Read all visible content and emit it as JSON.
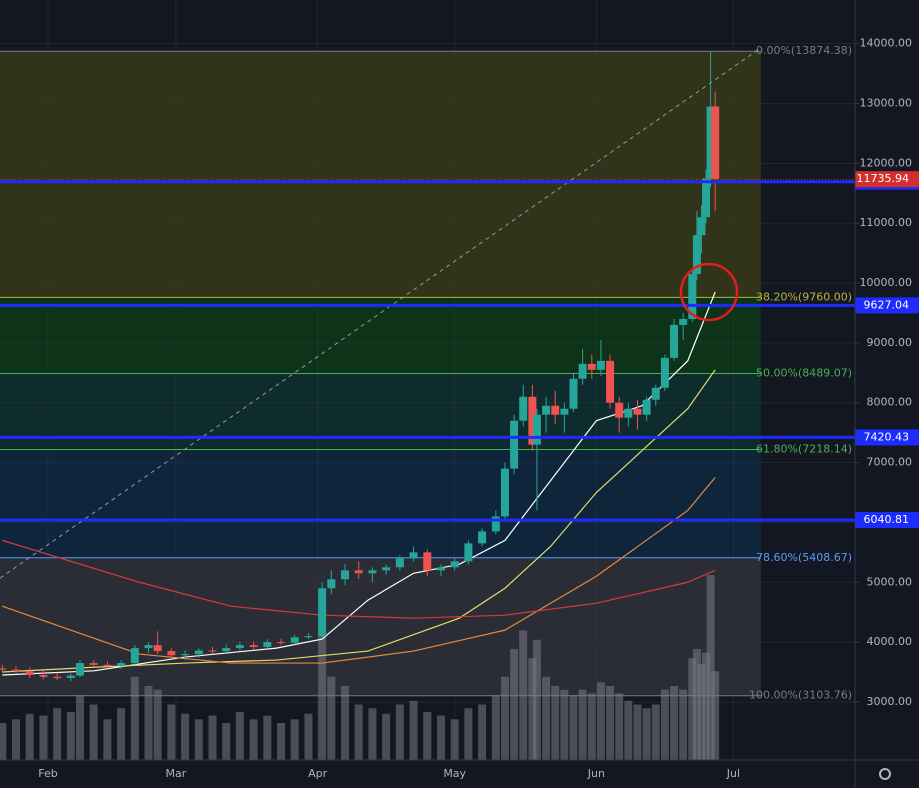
{
  "chart_data": {
    "type": "candlestick",
    "x": [
      -10,
      -7,
      -4,
      -1,
      2,
      5,
      7,
      10,
      13,
      16,
      19,
      22,
      24,
      27,
      30,
      33,
      36,
      39,
      42,
      45,
      48,
      51,
      54,
      57,
      60,
      62,
      65,
      68,
      71,
      74,
      77,
      80,
      83,
      86,
      89,
      92,
      95,
      98,
      100,
      102,
      104,
      106,
      107,
      109,
      111,
      113,
      115,
      117,
      119,
      121,
      123,
      125,
      127,
      129,
      131,
      133,
      135,
      137,
      139,
      141,
      142,
      143,
      144,
      145,
      146
    ],
    "open": [
      3560,
      3540,
      3510,
      3450,
      3420,
      3400,
      3440,
      3650,
      3620,
      3600,
      3650,
      3900,
      3950,
      3850,
      3780,
      3800,
      3860,
      3850,
      3900,
      3950,
      3920,
      4000,
      3990,
      4080,
      4100,
      4900,
      5050,
      5200,
      5150,
      5200,
      5250,
      5400,
      5500,
      5200,
      5250,
      5350,
      5650,
      5850,
      6100,
      6900,
      7700,
      8100,
      7300,
      7800,
      7950,
      7800,
      7900,
      8400,
      8650,
      8550,
      8700,
      8000,
      7750,
      7900,
      7800,
      8050,
      8250,
      8750,
      9300,
      9400,
      10150,
      10800,
      11100,
      11750,
      12950
    ],
    "high": [
      3620,
      3600,
      3580,
      3520,
      3490,
      3470,
      3700,
      3700,
      3680,
      3700,
      3950,
      4000,
      4180,
      3900,
      3860,
      3900,
      3920,
      3960,
      4000,
      4010,
      4050,
      4060,
      4120,
      4150,
      5000,
      5200,
      5300,
      5350,
      5250,
      5300,
      5450,
      5600,
      5550,
      5300,
      5400,
      5700,
      5900,
      6200,
      7000,
      7800,
      8300,
      8300,
      7900,
      8100,
      8200,
      8000,
      8500,
      8900,
      8800,
      9050,
      8800,
      8100,
      8000,
      8050,
      8100,
      8300,
      8800,
      9400,
      9500,
      10200,
      11200,
      11300,
      11900,
      13880,
      13200
    ],
    "low": [
      3500,
      3480,
      3400,
      3380,
      3360,
      3350,
      3420,
      3580,
      3560,
      3550,
      3620,
      3820,
      3800,
      3720,
      3700,
      3740,
      3800,
      3820,
      3860,
      3880,
      3890,
      3950,
      3960,
      4050,
      4080,
      4800,
      4950,
      5050,
      5000,
      5120,
      5200,
      5350,
      5100,
      5100,
      5200,
      5300,
      5600,
      5800,
      6050,
      6800,
      7600,
      7200,
      6200,
      7500,
      7650,
      7500,
      7850,
      8300,
      8400,
      8450,
      7900,
      7500,
      7600,
      7550,
      7700,
      7950,
      8200,
      8700,
      9050,
      9350,
      10050,
      10500,
      11000,
      11600,
      11200
    ],
    "close": [
      3540,
      3510,
      3450,
      3420,
      3400,
      3440,
      3650,
      3620,
      3600,
      3650,
      3900,
      3950,
      3850,
      3780,
      3800,
      3860,
      3850,
      3900,
      3950,
      3920,
      4000,
      3990,
      4080,
      4100,
      4900,
      5050,
      5200,
      5150,
      5200,
      5250,
      5400,
      5500,
      5200,
      5250,
      5350,
      5650,
      5850,
      6100,
      6900,
      7700,
      8100,
      7300,
      7800,
      7950,
      7800,
      7900,
      8400,
      8650,
      8550,
      8700,
      8000,
      7750,
      7900,
      7800,
      8050,
      8250,
      8750,
      9300,
      9400,
      10150,
      10800,
      11100,
      11750,
      12950,
      11735.94
    ],
    "volume": [
      20,
      22,
      25,
      24,
      28,
      26,
      35,
      30,
      22,
      28,
      45,
      40,
      38,
      30,
      25,
      22,
      24,
      20,
      26,
      22,
      24,
      20,
      22,
      25,
      70,
      45,
      40,
      30,
      28,
      25,
      30,
      32,
      26,
      24,
      22,
      28,
      30,
      35,
      45,
      60,
      70,
      55,
      65,
      45,
      40,
      38,
      35,
      38,
      36,
      42,
      40,
      36,
      32,
      30,
      28,
      30,
      38,
      40,
      38,
      55,
      60,
      52,
      58,
      100,
      48
    ],
    "colors": {
      "up": "#26a69a",
      "down": "#ef5350",
      "volume": "rgba(120,123,134,0.55)"
    },
    "xlim": [
      -10.5,
      176.6
    ],
    "ylim": [
      2030,
      14730
    ],
    "y2lim": [
      0,
      100
    ],
    "xticks": [
      {
        "value": 0,
        "label": "Feb"
      },
      {
        "value": 28,
        "label": "Mar"
      },
      {
        "value": 59,
        "label": "Apr"
      },
      {
        "value": 89,
        "label": "May"
      },
      {
        "value": 120,
        "label": "Jun"
      },
      {
        "value": 150,
        "label": "Jul"
      }
    ],
    "yticks": [
      {
        "value": 3000,
        "label": "3000.00"
      },
      {
        "value": 4000,
        "label": "4000.00"
      },
      {
        "value": 5000,
        "label": "5000.00"
      },
      {
        "value": 6000,
        "label": "6000.00"
      },
      {
        "value": 7000,
        "label": "7000.00"
      },
      {
        "value": 8000,
        "label": "8000.00"
      },
      {
        "value": 9000,
        "label": "9000.00"
      },
      {
        "value": 10000,
        "label": "10000.00"
      },
      {
        "value": 11000,
        "label": "11000.00"
      },
      {
        "value": 12000,
        "label": "12000.00"
      },
      {
        "value": 13000,
        "label": "13000.00"
      },
      {
        "value": 14000,
        "label": "14000.00"
      }
    ],
    "moving_averages": [
      {
        "color": "#ffffff",
        "x": [
          -10,
          10,
          30,
          50,
          60,
          70,
          80,
          90,
          100,
          110,
          120,
          130,
          140,
          146
        ],
        "values": [
          3450,
          3520,
          3750,
          3900,
          4050,
          4700,
          5150,
          5300,
          5700,
          6700,
          7700,
          7950,
          8700,
          9850
        ]
      },
      {
        "color": "#e0dc6a",
        "x": [
          -10,
          10,
          30,
          50,
          70,
          90,
          100,
          110,
          120,
          130,
          140,
          146
        ],
        "values": [
          3500,
          3580,
          3650,
          3700,
          3850,
          4400,
          4900,
          5600,
          6500,
          7200,
          7900,
          8550
        ]
      },
      {
        "color": "#e58a3c",
        "x": [
          -10,
          20,
          40,
          60,
          80,
          100,
          120,
          140,
          146
        ],
        "values": [
          4600,
          3800,
          3650,
          3650,
          3850,
          4200,
          5100,
          6200,
          6750
        ]
      },
      {
        "color": "#d63a3a",
        "x": [
          -10,
          20,
          40,
          60,
          80,
          100,
          120,
          140,
          146
        ],
        "values": [
          5700,
          5000,
          4600,
          4450,
          4400,
          4450,
          4650,
          5000,
          5200
        ]
      }
    ],
    "fib_x": [
      -10.5,
      156
    ],
    "fib_levels": [
      {
        "label": "0.00%(13874.38)",
        "value": 13874.38,
        "line_color": "#787b86",
        "zone_color": "rgba(128,128,0,0.28)"
      },
      {
        "label": "38.20%(9760.00)",
        "value": 9760.0,
        "line_color": "#b5b535",
        "zone_color": "rgba(0,128,0,0.28)"
      },
      {
        "label": "50.00%(8489.07)",
        "value": 8489.07,
        "line_color": "#4caf50",
        "zone_color": "rgba(0,120,90,0.22)"
      },
      {
        "label": "61.80%(7218.14)",
        "value": 7218.14,
        "line_color": "#4caf50",
        "zone_color": "rgba(0,90,150,0.22)"
      },
      {
        "label": "78.60%(5408.67)",
        "value": 5408.67,
        "line_color": "#5b9cf6",
        "zone_color": "rgba(110,110,110,0.25)"
      },
      {
        "label": "100.00%(3103.76)",
        "value": 3103.76,
        "line_color": "#787b86",
        "zone_color": "rgba(0,0,0,0)"
      }
    ],
    "trend_line": {
      "x": [
        -10.5,
        156
      ],
      "y": [
        5070,
        13930
      ]
    },
    "levels": [
      {
        "value": 11693.53,
        "color": "#1e2bff"
      },
      {
        "value": 9627.04,
        "color": "#1e2bff"
      },
      {
        "value": 7420.43,
        "color": "#1e2bff"
      },
      {
        "value": 6040.81,
        "color": "#1e2bff"
      }
    ],
    "last_price": {
      "value": 11735.94,
      "color": "#d32f2f"
    }
  }
}
